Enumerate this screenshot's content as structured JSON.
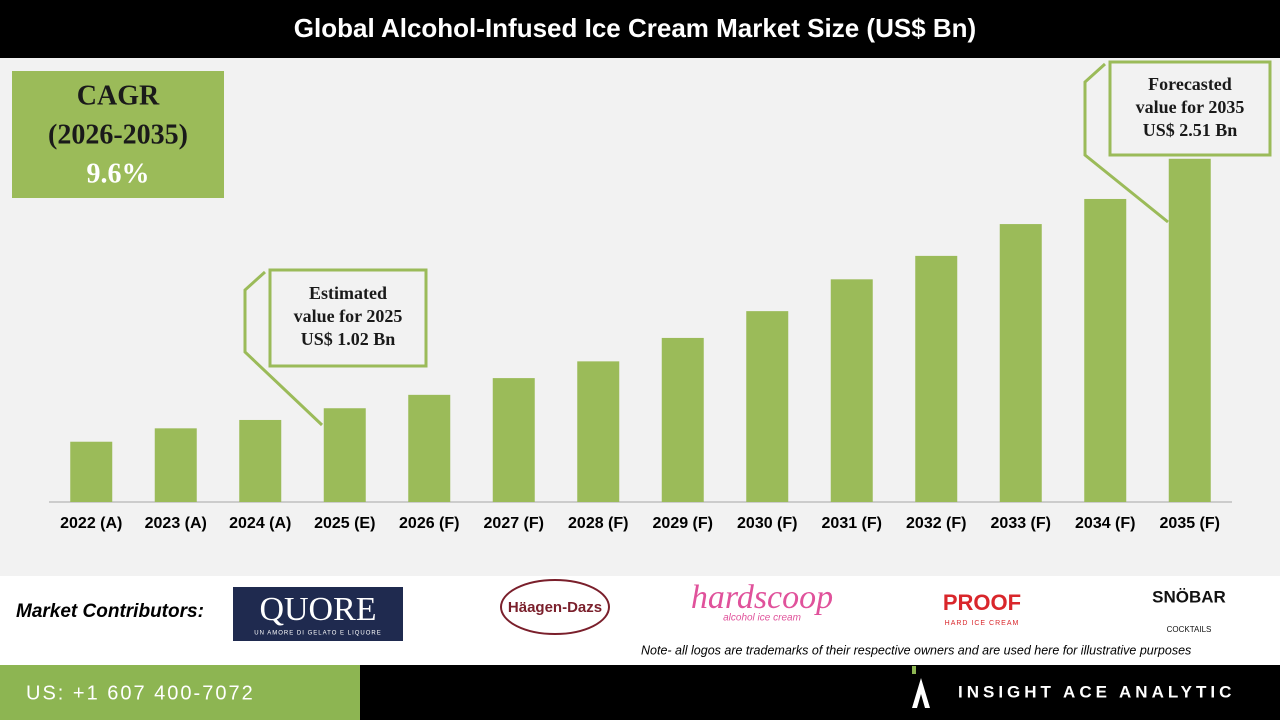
{
  "chart_data": {
    "type": "bar",
    "title": "Global Alcohol-Infused Ice Cream Market Size (US$ Bn)",
    "categories": [
      "2022 (A)",
      "2023 (A)",
      "2024 (A)",
      "2025 (E)",
      "2026 (F)",
      "2027 (F)",
      "2028 (F)",
      "2029 (F)",
      "2030 (F)",
      "2031 (F)",
      "2032 (F)",
      "2033 (F)",
      "2034 (F)",
      "2035 (F)"
    ],
    "values": [
      0.82,
      0.9,
      0.95,
      1.02,
      1.1,
      1.2,
      1.3,
      1.44,
      1.6,
      1.79,
      1.93,
      2.12,
      2.27,
      2.51
    ],
    "color": "#9bbb59",
    "ylim": [
      0.46,
      3.1
    ],
    "cagr": {
      "label": "CAGR",
      "period": "(2026-2035)",
      "value": "9.6%"
    },
    "callouts": [
      {
        "lines": [
          "Estimated",
          "value for 2025",
          "US$ 1.02 Bn"
        ]
      },
      {
        "lines": [
          "Forecasted",
          "value for 2035",
          "US$ 2.51 Bn"
        ]
      }
    ]
  },
  "contributors": {
    "label": "Market Contributors:",
    "logos": [
      {
        "name": "QUORE",
        "tagline": "UN AMORE DI GELATO E LIQUORE"
      },
      {
        "name": "Häagen-Dazs"
      },
      {
        "name": "hardscoop",
        "tagline": "alcohol ice cream"
      },
      {
        "name": "PROOF",
        "tagline": "HARD ICE CREAM"
      },
      {
        "name": "SNÖBAR",
        "tagline": "COCKTAILS"
      }
    ],
    "note": "Note- all logos are trademarks of their respective owners and are used here for illustrative purposes"
  },
  "footer": {
    "phone": "US: +1 607 400-7072",
    "brand": "INSIGHT ACE ANALYTIC"
  }
}
